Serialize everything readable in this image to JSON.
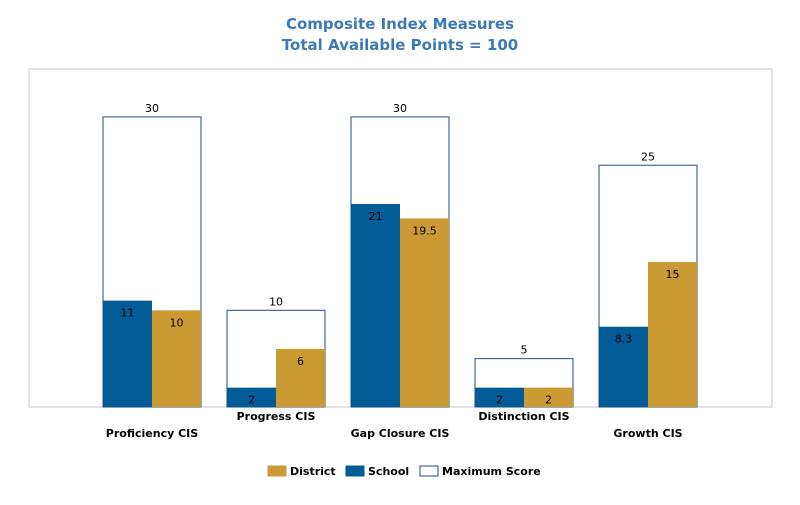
{
  "chart_data": {
    "type": "bar",
    "title": "Composite Index Measures",
    "subtitle": "Total Available Points = 100",
    "categories": [
      "Proficiency CIS",
      "Progress CIS",
      "Gap Closure CIS",
      "Distinction CIS",
      "Growth CIS"
    ],
    "maximum": {
      "name": "Maximum Score",
      "values": [
        30,
        10,
        30,
        5,
        25
      ]
    },
    "series": [
      {
        "name": "School",
        "values": [
          11,
          2,
          21,
          2,
          8.3
        ]
      },
      {
        "name": "District",
        "values": [
          10,
          6,
          19.5,
          2,
          15
        ]
      }
    ],
    "legend": [
      "District",
      "School",
      "Maximum Score"
    ],
    "legend_position": "bottom",
    "ylim": [
      0,
      35
    ],
    "grid": false
  },
  "colors": {
    "title": "#3d7ab5",
    "school": "#005b96",
    "district": "#cb9a33",
    "maximum_fill": "#ffffff",
    "maximum_stroke": "#1f4e79",
    "plot_border": "#c8c8c8",
    "text": "#000000"
  }
}
